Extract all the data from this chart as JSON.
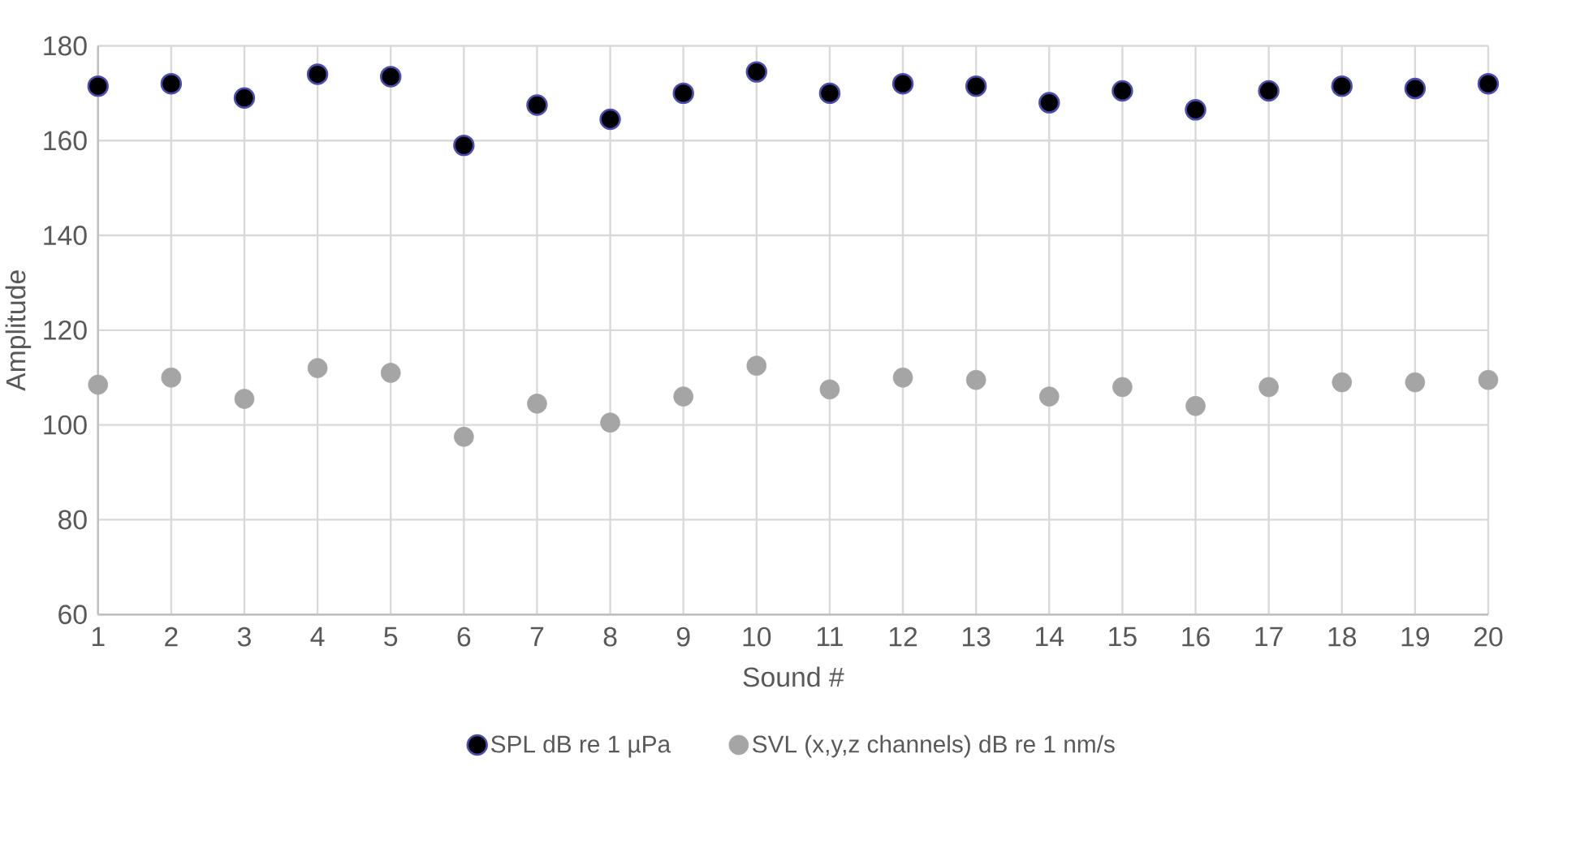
{
  "chart_data": {
    "type": "scatter",
    "xlabel": "Sound #",
    "ylabel": "Amplitude",
    "x": [
      1,
      2,
      3,
      4,
      5,
      6,
      7,
      8,
      9,
      10,
      11,
      12,
      13,
      14,
      15,
      16,
      17,
      18,
      19,
      20
    ],
    "series": [
      {
        "name": "SPL dB re 1 µPa",
        "color": "#000000",
        "values": [
          171.5,
          172,
          169,
          174,
          173.5,
          159,
          167.5,
          164.5,
          170,
          174.5,
          170,
          172,
          171.5,
          168,
          170.5,
          166.5,
          170.5,
          171.5,
          171,
          172
        ]
      },
      {
        "name": "SVL (x,y,z channels) dB re 1 nm/s",
        "color": "#a5a5a5",
        "values": [
          108.5,
          110,
          105.5,
          112,
          111,
          97.5,
          104.5,
          100.5,
          106,
          112.5,
          107.5,
          110,
          109.5,
          106,
          108,
          104,
          108,
          109,
          109,
          109.5
        ]
      }
    ],
    "xlim": [
      1,
      20
    ],
    "xticks": [
      1,
      2,
      3,
      4,
      5,
      6,
      7,
      8,
      9,
      10,
      11,
      12,
      13,
      14,
      15,
      16,
      17,
      18,
      19,
      20
    ],
    "ylim": [
      60,
      180
    ],
    "yticks": [
      60,
      80,
      100,
      120,
      140,
      160,
      180
    ],
    "grid": true,
    "legend": "bottom",
    "marker": "circle"
  }
}
